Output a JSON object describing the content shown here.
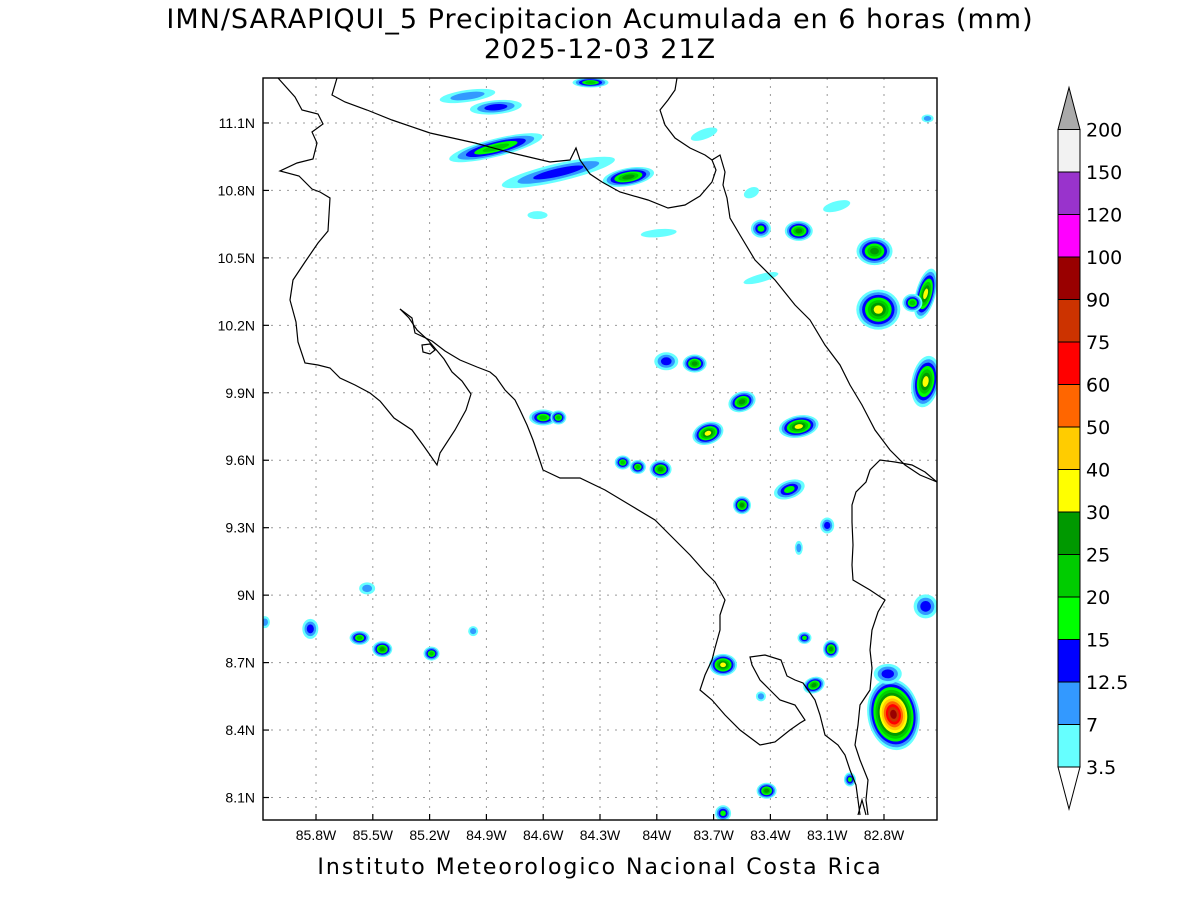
{
  "title": {
    "line1": "IMN/SARAPIQUI_5 Precipitacion Acumulada en 6 horas (mm)",
    "line2": "2025-12-03 21Z"
  },
  "footer": "Instituto Meteorologico Nacional Costa Rica",
  "map": {
    "lon_range": [
      -86.08,
      -82.52
    ],
    "lat_range": [
      8.0,
      11.3
    ],
    "lon_ticks": [
      {
        "value": -85.8,
        "label": "85.8W"
      },
      {
        "value": -85.5,
        "label": "85.5W"
      },
      {
        "value": -85.2,
        "label": "85.2W"
      },
      {
        "value": -84.9,
        "label": "84.9W"
      },
      {
        "value": -84.6,
        "label": "84.6W"
      },
      {
        "value": -84.3,
        "label": "84.3W"
      },
      {
        "value": -84.0,
        "label": "84W"
      },
      {
        "value": -83.7,
        "label": "83.7W"
      },
      {
        "value": -83.4,
        "label": "83.4W"
      },
      {
        "value": -83.1,
        "label": "83.1W"
      },
      {
        "value": -82.8,
        "label": "82.8W"
      }
    ],
    "lat_ticks": [
      {
        "value": 8.1,
        "label": "8.1N"
      },
      {
        "value": 8.4,
        "label": "8.4N"
      },
      {
        "value": 8.7,
        "label": "8.7N"
      },
      {
        "value": 9.0,
        "label": "9N"
      },
      {
        "value": 9.3,
        "label": "9.3N"
      },
      {
        "value": 9.6,
        "label": "9.6N"
      },
      {
        "value": 9.9,
        "label": "9.9N"
      },
      {
        "value": 10.2,
        "label": "10.2N"
      },
      {
        "value": 10.5,
        "label": "10.5N"
      },
      {
        "value": 10.8,
        "label": "10.8N"
      },
      {
        "value": 11.1,
        "label": "11.1N"
      }
    ],
    "grid": true
  },
  "colorbar": {
    "levels": [
      {
        "label": "3.5",
        "color": "#66ffff"
      },
      {
        "label": "7",
        "color": "#3399ff"
      },
      {
        "label": "12.5",
        "color": "#0000ff"
      },
      {
        "label": "15",
        "color": "#00ff00"
      },
      {
        "label": "20",
        "color": "#00cc00"
      },
      {
        "label": "25",
        "color": "#009900"
      },
      {
        "label": "30",
        "color": "#ffff00"
      },
      {
        "label": "40",
        "color": "#ffcc00"
      },
      {
        "label": "50",
        "color": "#ff6600"
      },
      {
        "label": "60",
        "color": "#ff0000"
      },
      {
        "label": "75",
        "color": "#cc3300"
      },
      {
        "label": "90",
        "color": "#990000"
      },
      {
        "label": "100",
        "color": "#ff00ff"
      },
      {
        "label": "120",
        "color": "#9933cc"
      },
      {
        "label": "150",
        "color": "#f2f2f2"
      },
      {
        "label": "200",
        "color": "#aaaaaa"
      }
    ]
  },
  "precip_cells": [
    {
      "lon": -82.75,
      "lat": 8.47,
      "rx": 26,
      "ry": 36,
      "rot": -10,
      "max": 90
    },
    {
      "lon": -82.58,
      "lat": 10.34,
      "rx": 10,
      "ry": 26,
      "rot": 15,
      "max": 30
    },
    {
      "lon": -82.83,
      "lat": 10.27,
      "rx": 22,
      "ry": 20,
      "rot": 0,
      "max": 30
    },
    {
      "lon": -82.85,
      "lat": 10.53,
      "rx": 18,
      "ry": 14,
      "rot": 0,
      "max": 25
    },
    {
      "lon": -82.65,
      "lat": 10.3,
      "rx": 10,
      "ry": 9,
      "rot": 0,
      "max": 20
    },
    {
      "lon": -84.85,
      "lat": 10.99,
      "rx": 48,
      "ry": 9,
      "rot": -14,
      "max": 20
    },
    {
      "lon": -84.52,
      "lat": 10.88,
      "rx": 58,
      "ry": 9,
      "rot": -13,
      "max": 12.5
    },
    {
      "lon": -84.15,
      "lat": 10.86,
      "rx": 26,
      "ry": 9,
      "rot": -10,
      "max": 25
    },
    {
      "lon": -84.85,
      "lat": 11.17,
      "rx": 26,
      "ry": 7,
      "rot": -5,
      "max": 12.5
    },
    {
      "lon": -85.0,
      "lat": 11.22,
      "rx": 28,
      "ry": 6,
      "rot": -8,
      "max": 7
    },
    {
      "lon": -84.35,
      "lat": 11.28,
      "rx": 18,
      "ry": 5,
      "rot": 0,
      "max": 20
    },
    {
      "lon": -83.25,
      "lat": 10.62,
      "rx": 14,
      "ry": 10,
      "rot": 0,
      "max": 25
    },
    {
      "lon": -83.45,
      "lat": 10.63,
      "rx": 10,
      "ry": 9,
      "rot": 0,
      "max": 15
    },
    {
      "lon": -84.6,
      "lat": 9.79,
      "rx": 14,
      "ry": 8,
      "rot": 0,
      "max": 20
    },
    {
      "lon": -84.52,
      "lat": 9.79,
      "rx": 8,
      "ry": 7,
      "rot": 0,
      "max": 20
    },
    {
      "lon": -84.18,
      "lat": 9.59,
      "rx": 8,
      "ry": 7,
      "rot": 0,
      "max": 20
    },
    {
      "lon": -84.1,
      "lat": 9.57,
      "rx": 8,
      "ry": 7,
      "rot": 0,
      "max": 20
    },
    {
      "lon": -83.98,
      "lat": 9.56,
      "rx": 11,
      "ry": 9,
      "rot": 0,
      "max": 25
    },
    {
      "lon": -83.73,
      "lat": 9.72,
      "rx": 16,
      "ry": 11,
      "rot": -20,
      "max": 30
    },
    {
      "lon": -83.55,
      "lat": 9.86,
      "rx": 14,
      "ry": 10,
      "rot": -20,
      "max": 25
    },
    {
      "lon": -83.25,
      "lat": 9.75,
      "rx": 20,
      "ry": 11,
      "rot": -10,
      "max": 30
    },
    {
      "lon": -83.95,
      "lat": 10.04,
      "rx": 12,
      "ry": 9,
      "rot": 0,
      "max": 12.5
    },
    {
      "lon": -83.8,
      "lat": 10.03,
      "rx": 12,
      "ry": 9,
      "rot": 0,
      "max": 25
    },
    {
      "lon": -83.3,
      "lat": 9.47,
      "rx": 16,
      "ry": 9,
      "rot": -20,
      "max": 15
    },
    {
      "lon": -83.55,
      "lat": 9.4,
      "rx": 9,
      "ry": 9,
      "rot": 0,
      "max": 25
    },
    {
      "lon": -83.1,
      "lat": 9.31,
      "rx": 7,
      "ry": 8,
      "rot": 0,
      "max": 12.5
    },
    {
      "lon": -83.65,
      "lat": 8.69,
      "rx": 14,
      "ry": 11,
      "rot": 0,
      "max": 30
    },
    {
      "lon": -83.17,
      "lat": 8.6,
      "rx": 11,
      "ry": 8,
      "rot": -20,
      "max": 25
    },
    {
      "lon": -83.08,
      "lat": 8.76,
      "rx": 8,
      "ry": 9,
      "rot": 0,
      "max": 25
    },
    {
      "lon": -83.22,
      "lat": 8.81,
      "rx": 7,
      "ry": 6,
      "rot": 0,
      "max": 15
    },
    {
      "lon": -83.42,
      "lat": 8.13,
      "rx": 10,
      "ry": 8,
      "rot": 0,
      "max": 25
    },
    {
      "lon": -82.98,
      "lat": 8.18,
      "rx": 6,
      "ry": 7,
      "rot": 0,
      "max": 15
    },
    {
      "lon": -83.65,
      "lat": 8.03,
      "rx": 8,
      "ry": 8,
      "rot": 0,
      "max": 15
    },
    {
      "lon": -82.58,
      "lat": 9.95,
      "rx": 14,
      "ry": 26,
      "rot": 10,
      "max": 30
    },
    {
      "lon": -85.83,
      "lat": 8.85,
      "rx": 8,
      "ry": 10,
      "rot": 0,
      "max": 12.5
    },
    {
      "lon": -85.57,
      "lat": 8.81,
      "rx": 10,
      "ry": 7,
      "rot": 0,
      "max": 20
    },
    {
      "lon": -85.45,
      "lat": 8.76,
      "rx": 10,
      "ry": 8,
      "rot": 0,
      "max": 25
    },
    {
      "lon": -85.19,
      "lat": 8.74,
      "rx": 8,
      "ry": 7,
      "rot": 0,
      "max": 20
    },
    {
      "lon": -85.53,
      "lat": 9.03,
      "rx": 8,
      "ry": 6,
      "rot": 0,
      "max": 7
    },
    {
      "lon": -84.97,
      "lat": 8.84,
      "rx": 5,
      "ry": 5,
      "rot": 0,
      "max": 7
    },
    {
      "lon": -82.58,
      "lat": 8.95,
      "rx": 12,
      "ry": 12,
      "rot": 0,
      "max": 12.5
    },
    {
      "lon": -82.78,
      "lat": 8.65,
      "rx": 14,
      "ry": 10,
      "rot": 0,
      "max": 12.5
    },
    {
      "lon": -83.05,
      "lat": 10.73,
      "rx": 14,
      "ry": 5,
      "rot": -15,
      "max": 3.5
    },
    {
      "lon": -83.75,
      "lat": 11.05,
      "rx": 14,
      "ry": 5,
      "rot": -20,
      "max": 3.5
    },
    {
      "lon": -83.99,
      "lat": 10.61,
      "rx": 18,
      "ry": 4,
      "rot": -5,
      "max": 3.5
    },
    {
      "lon": -84.63,
      "lat": 10.69,
      "rx": 10,
      "ry": 4,
      "rot": 0,
      "max": 3.5
    },
    {
      "lon": -83.45,
      "lat": 10.41,
      "rx": 18,
      "ry": 4,
      "rot": -15,
      "max": 3.5
    },
    {
      "lon": -82.57,
      "lat": 11.12,
      "rx": 6,
      "ry": 4,
      "rot": 0,
      "max": 7
    },
    {
      "lon": -83.5,
      "lat": 10.79,
      "rx": 8,
      "ry": 5,
      "rot": -25,
      "max": 3.5
    },
    {
      "lon": -83.45,
      "lat": 8.55,
      "rx": 5,
      "ry": 5,
      "rot": 0,
      "max": 7
    },
    {
      "lon": -83.25,
      "lat": 9.21,
      "rx": 4,
      "ry": 7,
      "rot": 0,
      "max": 7
    },
    {
      "lon": -86.07,
      "lat": 8.88,
      "rx": 5,
      "ry": 6,
      "rot": 0,
      "max": 7
    }
  ]
}
